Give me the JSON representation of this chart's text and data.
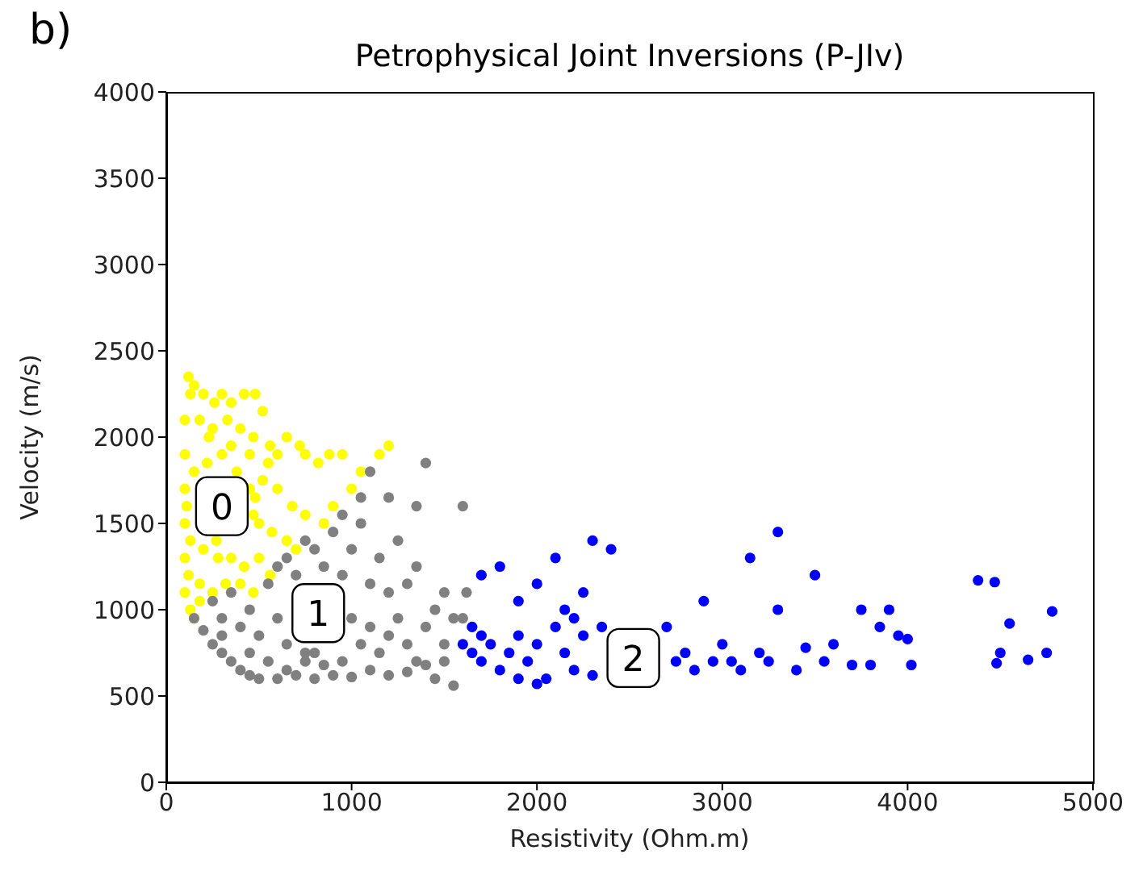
{
  "chart_data": {
    "type": "scatter",
    "title": "Petrophysical Joint Inversions (P-JIv)",
    "xlabel": "Resistivity (Ohm.m)",
    "ylabel": "Velocity (m/s)",
    "xlim": [
      0,
      5000
    ],
    "xticks": [
      0,
      1000,
      2000,
      3000,
      4000,
      5000
    ],
    "ylim": [
      0,
      4000
    ],
    "yticks": [
      0,
      500,
      1000,
      1500,
      2000,
      2500,
      3000,
      3500,
      4000
    ],
    "grid": false,
    "legend": false,
    "marker": "circle",
    "annotations": [
      "b)",
      {
        "text": "0",
        "x": 300,
        "y": 1600
      },
      {
        "text": "1",
        "x": 820,
        "y": 980
      },
      {
        "text": "2",
        "x": 2520,
        "y": 720
      }
    ],
    "series": [
      {
        "color": "#ffff00",
        "x": [
          120,
          150,
          200,
          260,
          300,
          350,
          420,
          480,
          100,
          180,
          250,
          330,
          400,
          470,
          520,
          560,
          600,
          650,
          720,
          750,
          820,
          880,
          950,
          1000,
          1050,
          1150,
          1200,
          100,
          150,
          220,
          300,
          380,
          450,
          520,
          600,
          680,
          750,
          850,
          900,
          100,
          110,
          500,
          570,
          650,
          700,
          100,
          130,
          200,
          280,
          350,
          420,
          500,
          560,
          100,
          120,
          180,
          250,
          320,
          400,
          470,
          100,
          130,
          180,
          150,
          550,
          450,
          350,
          230,
          130,
          270,
          480,
          470
        ],
        "values": [
          2350,
          2300,
          2250,
          2200,
          2250,
          2200,
          2250,
          2250,
          2100,
          2100,
          2050,
          2100,
          2050,
          2000,
          2150,
          1950,
          1900,
          2000,
          1950,
          1900,
          1850,
          1900,
          1900,
          1700,
          1800,
          1900,
          1950,
          1900,
          1800,
          1850,
          1900,
          1800,
          1700,
          1750,
          1700,
          1600,
          1550,
          1500,
          1600,
          1700,
          1600,
          1500,
          1450,
          1400,
          1350,
          1500,
          1400,
          1350,
          1300,
          1300,
          1250,
          1300,
          1200,
          1300,
          1200,
          1150,
          1100,
          1150,
          1150,
          1100,
          1100,
          1000,
          1050,
          950,
          1850,
          1900,
          1950,
          2000,
          2250,
          1400,
          1650,
          1550
        ]
      },
      {
        "color": "#808080",
        "x": [
          150,
          200,
          250,
          300,
          350,
          400,
          450,
          500,
          600,
          700,
          800,
          900,
          1000,
          1100,
          1200,
          1300,
          1400,
          1500,
          1550,
          250,
          300,
          350,
          400,
          450,
          500,
          550,
          600,
          650,
          750,
          800,
          950,
          1000,
          1050,
          1100,
          1150,
          1200,
          1250,
          1300,
          1350,
          1400,
          1450,
          1500,
          1600,
          1620,
          600,
          650,
          700,
          750,
          800,
          850,
          900,
          950,
          1000,
          1050,
          1100,
          1150,
          1200,
          1250,
          1300,
          1350,
          1400,
          1500,
          1600,
          1050,
          950,
          1100,
          550,
          650,
          750,
          850,
          1200,
          1550,
          1350,
          450,
          300,
          1450
        ],
        "values": [
          950,
          880,
          800,
          750,
          700,
          650,
          620,
          600,
          600,
          620,
          600,
          620,
          610,
          650,
          620,
          640,
          680,
          700,
          560,
          1050,
          950,
          1100,
          900,
          1000,
          850,
          1150,
          950,
          800,
          750,
          750,
          700,
          950,
          800,
          900,
          750,
          850,
          950,
          800,
          700,
          900,
          1000,
          800,
          950,
          1100,
          1250,
          1300,
          1200,
          1400,
          1350,
          1250,
          1450,
          1200,
          1350,
          1500,
          1150,
          1300,
          1650,
          1400,
          1150,
          1250,
          1850,
          1100,
          1600,
          1650,
          1550,
          1800,
          700,
          650,
          700,
          680,
          1100,
          950,
          1600,
          750,
          850,
          600
        ]
      },
      {
        "color": "#0000ff",
        "x": [
          1600,
          1650,
          1700,
          1650,
          1700,
          1750,
          1800,
          1850,
          1900,
          1950,
          2000,
          2050,
          2100,
          2150,
          2200,
          2250,
          1700,
          1800,
          1900,
          2000,
          2100,
          2150,
          2200,
          2300,
          2400,
          2250,
          2350,
          2700,
          2750,
          2800,
          2850,
          2900,
          2950,
          3000,
          3050,
          3100,
          3150,
          3200,
          3250,
          3300,
          3300,
          3400,
          3450,
          3500,
          3550,
          3600,
          3700,
          3750,
          3800,
          3850,
          3900,
          3950,
          4000,
          4020,
          4380,
          4470,
          4480,
          4500,
          4550,
          4650,
          4750,
          4780,
          1900,
          2000,
          2300
        ],
        "values": [
          800,
          750,
          850,
          900,
          700,
          800,
          650,
          750,
          850,
          700,
          800,
          600,
          900,
          750,
          650,
          850,
          1200,
          1250,
          1050,
          1150,
          1300,
          1000,
          950,
          1400,
          1350,
          1100,
          900,
          900,
          700,
          750,
          650,
          1050,
          700,
          800,
          700,
          650,
          1300,
          750,
          700,
          1450,
          1000,
          650,
          780,
          1200,
          700,
          800,
          680,
          1000,
          680,
          900,
          1000,
          850,
          830,
          680,
          1170,
          1160,
          690,
          750,
          920,
          710,
          750,
          990,
          600,
          570,
          620
        ]
      }
    ]
  }
}
